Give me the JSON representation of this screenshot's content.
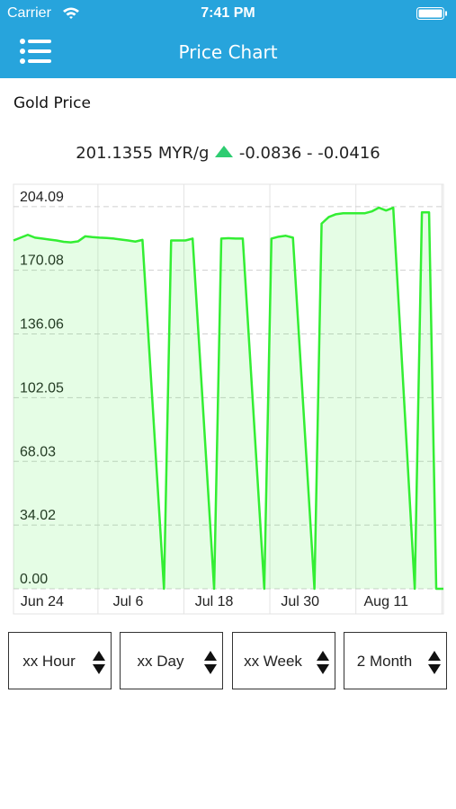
{
  "status_bar": {
    "carrier": "Carrier",
    "time": "7:41 PM"
  },
  "nav": {
    "title": "Price Chart"
  },
  "section_title": "Gold Price",
  "price": {
    "current": "201.1355 MYR/g",
    "change": "-0.0836 - -0.0416"
  },
  "chart_data": {
    "type": "area",
    "color": "#33ee33",
    "x": [
      "Jun 20",
      "Jun 21",
      "Jun 22",
      "Jun 23",
      "Jun 24",
      "Jun 25",
      "Jun 26",
      "Jun 27",
      "Jun 28",
      "Jun 29",
      "Jun 30",
      "Jul 1",
      "Jul 2",
      "Jul 3",
      "Jul 4",
      "Jul 5",
      "Jul 6",
      "Jul 7",
      "Jul 8",
      "Jul 11",
      "Jul 12",
      "Jul 13",
      "Jul 14",
      "Jul 15",
      "Jul 18",
      "Jul 19",
      "Jul 20",
      "Jul 21",
      "Jul 22",
      "Jul 25",
      "Jul 26",
      "Jul 27",
      "Jul 28",
      "Jul 29",
      "Aug 1",
      "Aug 2",
      "Aug 3",
      "Aug 4",
      "Aug 5",
      "Aug 6",
      "Aug 7",
      "Aug 8",
      "Aug 9",
      "Aug 10",
      "Aug 11",
      "Aug 12",
      "Aug 15",
      "Aug 16",
      "Aug 17",
      "Aug 18",
      "Aug 19"
    ],
    "values": [
      186,
      187.5,
      189,
      187.5,
      187,
      186.5,
      186,
      185.3,
      185,
      185.5,
      188.2,
      187.8,
      187.5,
      187.3,
      187,
      186.5,
      186,
      185.4,
      186.3,
      0,
      186,
      186,
      186,
      187,
      0,
      187,
      187.2,
      187,
      187,
      0,
      187,
      188,
      188.5,
      187.5,
      0,
      195,
      198.5,
      200,
      200.5,
      200.5,
      200.5,
      200.5,
      201.5,
      203.5,
      202,
      203.5,
      0,
      201,
      201,
      0,
      0
    ],
    "xlim": [
      "Jun 20",
      "Aug 19"
    ],
    "xticks": [
      "Jun 24",
      "Jul 6",
      "Jul 18",
      "Jul 30",
      "Aug 11"
    ],
    "ylim": [
      0,
      216
    ],
    "yticks": [
      {
        "value": 0,
        "label": "0.00"
      },
      34.02,
      68.03,
      102.05,
      136.06,
      170.08,
      204.09
    ],
    "grid": true
  },
  "controls": [
    "xx Hour",
    "xx Day",
    "xx Week",
    "2 Month"
  ]
}
